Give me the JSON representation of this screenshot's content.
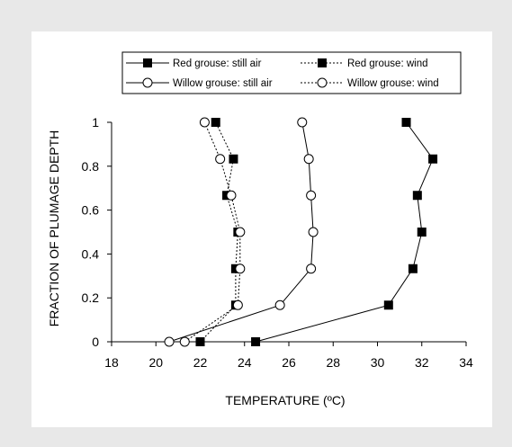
{
  "chart_data": {
    "type": "line",
    "xlabel": "TEMPERATURE (ºC)",
    "ylabel": "FRACTION OF PLUMAGE DEPTH",
    "xlim": [
      18,
      34
    ],
    "ylim": [
      0,
      1
    ],
    "x_ticks": [
      "18",
      "20",
      "22",
      "24",
      "26",
      "28",
      "30",
      "32",
      "34"
    ],
    "y_ticks": [
      "0",
      "0.2",
      "0.4",
      "0.6",
      "0.8",
      "1"
    ],
    "legend_position": "top",
    "series": [
      {
        "name": "Red grouse: still air",
        "marker": "square-filled",
        "line": "solid",
        "points": [
          [
            24.5,
            0
          ],
          [
            30.5,
            0.167
          ],
          [
            31.6,
            0.333
          ],
          [
            32.0,
            0.5
          ],
          [
            31.8,
            0.667
          ],
          [
            32.5,
            0.833
          ],
          [
            31.3,
            1.0
          ]
        ]
      },
      {
        "name": "Red grouse: wind",
        "marker": "square-filled",
        "line": "dotted",
        "points": [
          [
            22.0,
            0
          ],
          [
            23.6,
            0.167
          ],
          [
            23.6,
            0.333
          ],
          [
            23.7,
            0.5
          ],
          [
            23.2,
            0.667
          ],
          [
            23.5,
            0.833
          ],
          [
            22.7,
            1.0
          ]
        ]
      },
      {
        "name": "Willow grouse: still air",
        "marker": "circle-open",
        "line": "solid",
        "points": [
          [
            20.6,
            0
          ],
          [
            25.6,
            0.167
          ],
          [
            27.0,
            0.333
          ],
          [
            27.1,
            0.5
          ],
          [
            27.0,
            0.667
          ],
          [
            26.9,
            0.833
          ],
          [
            26.6,
            1.0
          ]
        ]
      },
      {
        "name": "Willow grouse: wind",
        "marker": "circle-open",
        "line": "dotted",
        "points": [
          [
            21.3,
            0
          ],
          [
            23.7,
            0.167
          ],
          [
            23.8,
            0.333
          ],
          [
            23.8,
            0.5
          ],
          [
            23.4,
            0.667
          ],
          [
            22.9,
            0.833
          ],
          [
            22.2,
            1.0
          ]
        ]
      }
    ]
  }
}
